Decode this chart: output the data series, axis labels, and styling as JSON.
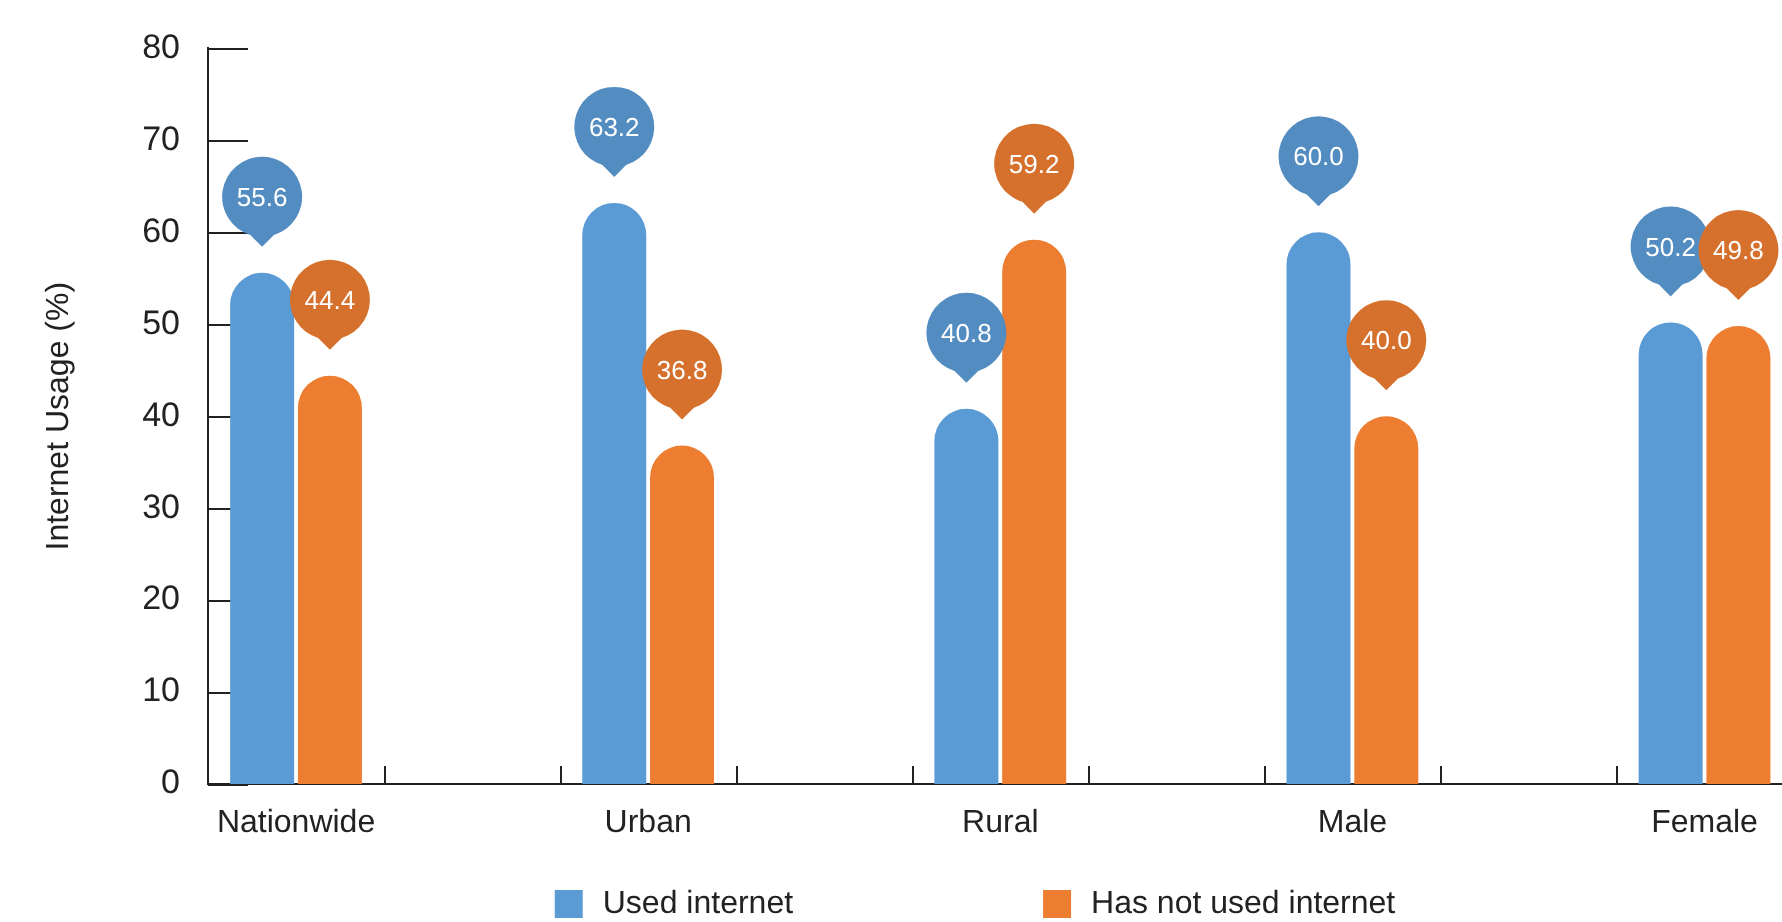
{
  "chart_data": {
    "type": "bar",
    "ylabel": "Internet Usage (%)",
    "categories": [
      "Nationwide",
      "Urban",
      "Rural",
      "Male",
      "Female"
    ],
    "series": [
      {
        "name": "Used internet",
        "color": "#5b9bd5",
        "values": [
          55.6,
          63.2,
          40.8,
          60.0,
          50.2
        ],
        "value_labels": [
          "55.6",
          "63.2",
          "40.8",
          "60.0",
          "50.2"
        ]
      },
      {
        "name": "Has not used internet",
        "color": "#ed7d31",
        "values": [
          44.4,
          36.8,
          59.2,
          40.0,
          49.8
        ],
        "value_labels": [
          "44.4",
          "36.8",
          "59.2",
          "40.0",
          "49.8"
        ]
      }
    ],
    "ylim": [
      0,
      80
    ],
    "yticks": [
      0,
      10,
      20,
      30,
      40,
      50,
      60,
      70,
      80
    ],
    "legend": "bottom"
  }
}
